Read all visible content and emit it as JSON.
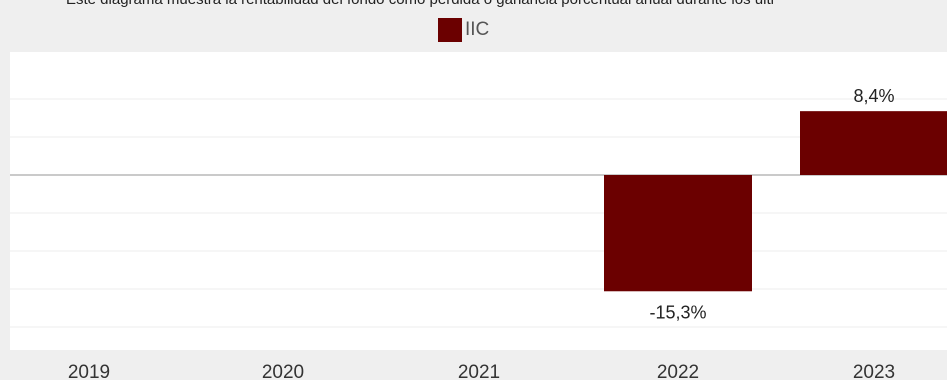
{
  "description_text": "Este diagrama muestra la rentabilidad del fondo como pérdida o ganancia porcentual anual durante los últi",
  "legend": {
    "label": "IIC",
    "color": "#6b0000"
  },
  "chart_data": {
    "type": "bar",
    "categories": [
      "2019",
      "2020",
      "2021",
      "2022",
      "2023"
    ],
    "series": [
      {
        "name": "IIC",
        "values": [
          null,
          null,
          null,
          -15.3,
          8.4
        ],
        "labels": [
          "",
          "",
          "",
          "-15,3%",
          "8,4%"
        ]
      }
    ],
    "ylim": [
      -20,
      10
    ],
    "grid": true,
    "legend_position": "top-center",
    "bar_color": "#6b0000"
  }
}
